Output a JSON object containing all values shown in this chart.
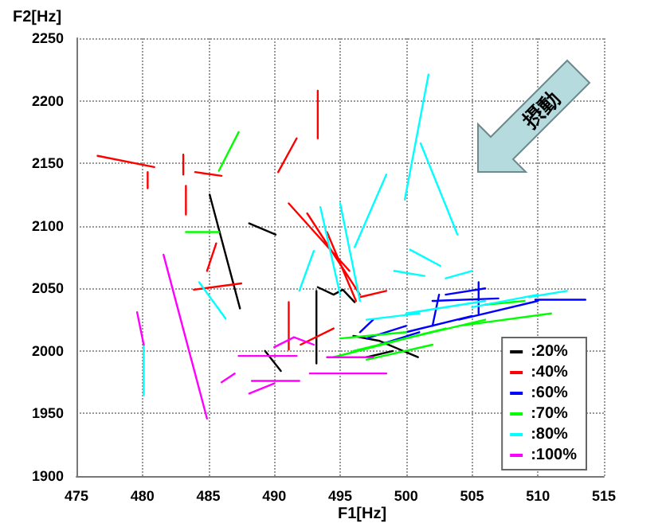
{
  "chart_data": {
    "type": "line",
    "xlabel": "F1[Hz]",
    "ylabel": "F2[Hz]",
    "xlim": [
      475,
      515
    ],
    "xticks": [
      475,
      480,
      485,
      490,
      495,
      500,
      505,
      510,
      515
    ],
    "ylim": [
      1900,
      2250
    ],
    "yticks": [
      1900,
      1950,
      2000,
      2050,
      2100,
      2150,
      2200,
      2250
    ],
    "grid": true,
    "legend": "bottom right",
    "marker": "none",
    "line_style": "solid",
    "annotations": [
      "摂動"
    ],
    "series": [
      {
        "name": ":20%",
        "color": "#000000",
        "x": [
          487.4,
          485.1,
          null,
          488.1,
          490.1,
          null,
          493.2,
          493.2,
          null,
          493.3,
          494.5,
          495.2,
          496.1,
          null,
          489.3,
          490.5,
          null,
          496,
          498,
          500.9,
          null,
          497,
          499
        ],
        "values": [
          2034,
          2125,
          null,
          2102,
          2093,
          null,
          1990,
          2048,
          null,
          2051,
          2045,
          2049,
          2039,
          null,
          2000,
          1984,
          null,
          2012,
          2008,
          1995,
          null,
          1995,
          2000
        ]
      },
      {
        "name": ":40%",
        "color": "#ff0000",
        "x": [
          480.9,
          476.6,
          null,
          480.4,
          480.4,
          null,
          483.1,
          483.1,
          null,
          483.3,
          483.3,
          null,
          486,
          484,
          null,
          490.3,
          491.7,
          null,
          493.3,
          493.3,
          null,
          484.9,
          485.6,
          null,
          487.5,
          483.9,
          null,
          495.7,
          491.1,
          null,
          496.5,
          492.5,
          null,
          496.2,
          494,
          null,
          491.1,
          491.1,
          null,
          496.5,
          498.5,
          null,
          492,
          494.5
        ],
        "values": [
          2147,
          2156,
          null,
          2130,
          2143,
          null,
          2141,
          2157,
          null,
          2109,
          2132,
          null,
          2140,
          2143,
          null,
          2143,
          2170,
          null,
          2170,
          2208,
          null,
          2064,
          2086,
          null,
          2054,
          2049,
          null,
          2064,
          2118,
          null,
          2045,
          2110,
          null,
          2040,
          2095,
          null,
          2001,
          2039,
          null,
          2043,
          2048,
          null,
          2005,
          2018
        ]
      },
      {
        "name": ":60%",
        "color": "#0000ff",
        "x": [
          509.8,
          513.6,
          null,
          503,
          506,
          null,
          505.5,
          505.5,
          null,
          502,
          502.5,
          null,
          497,
          500,
          null,
          498,
          501,
          null,
          500,
          505,
          null,
          504,
          510,
          null,
          502,
          507,
          null,
          496.5,
          497.5
        ],
        "values": [
          2041,
          2041,
          null,
          2045,
          2050,
          null,
          2030,
          2055,
          null,
          2020,
          2045,
          null,
          2010,
          2020,
          null,
          2005,
          2015,
          null,
          2015,
          2028,
          null,
          2025,
          2040,
          null,
          2040,
          2042,
          null,
          2015,
          2025
        ]
      },
      {
        "name": ":70%",
        "color": "#00ff00",
        "x": [
          485.8,
          487.3,
          null,
          483.3,
          485.8,
          null,
          494.5,
          500,
          null,
          496,
          503,
          null,
          500,
          506,
          null,
          504,
          511,
          null,
          497,
          502,
          null,
          506,
          509,
          null,
          495,
          500
        ],
        "values": [
          2144,
          2175,
          null,
          2095,
          2095,
          null,
          1995,
          2010,
          null,
          2000,
          2018,
          null,
          2010,
          2025,
          null,
          2020,
          2030,
          null,
          1993,
          2005,
          null,
          2037,
          2040,
          null,
          2010,
          2015
        ]
      },
      {
        "name": ":80%",
        "color": "#00ffff",
        "x": [
          480.1,
          480.1,
          null,
          499.9,
          501.7,
          null,
          501.1,
          503.9,
          null,
          496.1,
          498.5,
          null,
          495,
          493.5,
          null,
          496.5,
          495,
          null,
          491.9,
          493,
          null,
          500.3,
          502.6,
          null,
          499.1,
          501.4,
          null,
          503,
          505,
          null,
          509.3,
          512.2,
          null,
          486.3,
          484.3,
          null,
          497,
          501,
          null,
          500,
          506,
          null,
          505,
          510
        ],
        "values": [
          2005,
          1965,
          null,
          2121,
          2221,
          null,
          2166,
          2093,
          null,
          2083,
          2141,
          null,
          2045,
          2115,
          null,
          2040,
          2118,
          null,
          2048,
          2080,
          null,
          2081,
          2068,
          null,
          2064,
          2060,
          null,
          2058,
          2064,
          null,
          2043,
          2048,
          null,
          2026,
          2055,
          null,
          2025,
          2030,
          null,
          2030,
          2040,
          null,
          2035,
          2045
        ]
      },
      {
        "name": ":100%",
        "color": "#ff00ff",
        "x": [
          484.9,
          481.6,
          null,
          480.1,
          479.6,
          null,
          487,
          486,
          null,
          488.1,
          490,
          null,
          487.3,
          491.7,
          null,
          488.3,
          491.9,
          null,
          492.7,
          498.5,
          null,
          490,
          491.5,
          493,
          null,
          494,
          497.5
        ],
        "values": [
          1946,
          2077,
          null,
          2005,
          2031,
          null,
          1982,
          1975,
          null,
          1966,
          1974,
          null,
          1996,
          1996,
          null,
          1976,
          1976,
          null,
          1982,
          1982,
          null,
          2003,
          2011,
          2005,
          null,
          1995,
          1995
        ]
      }
    ]
  }
}
